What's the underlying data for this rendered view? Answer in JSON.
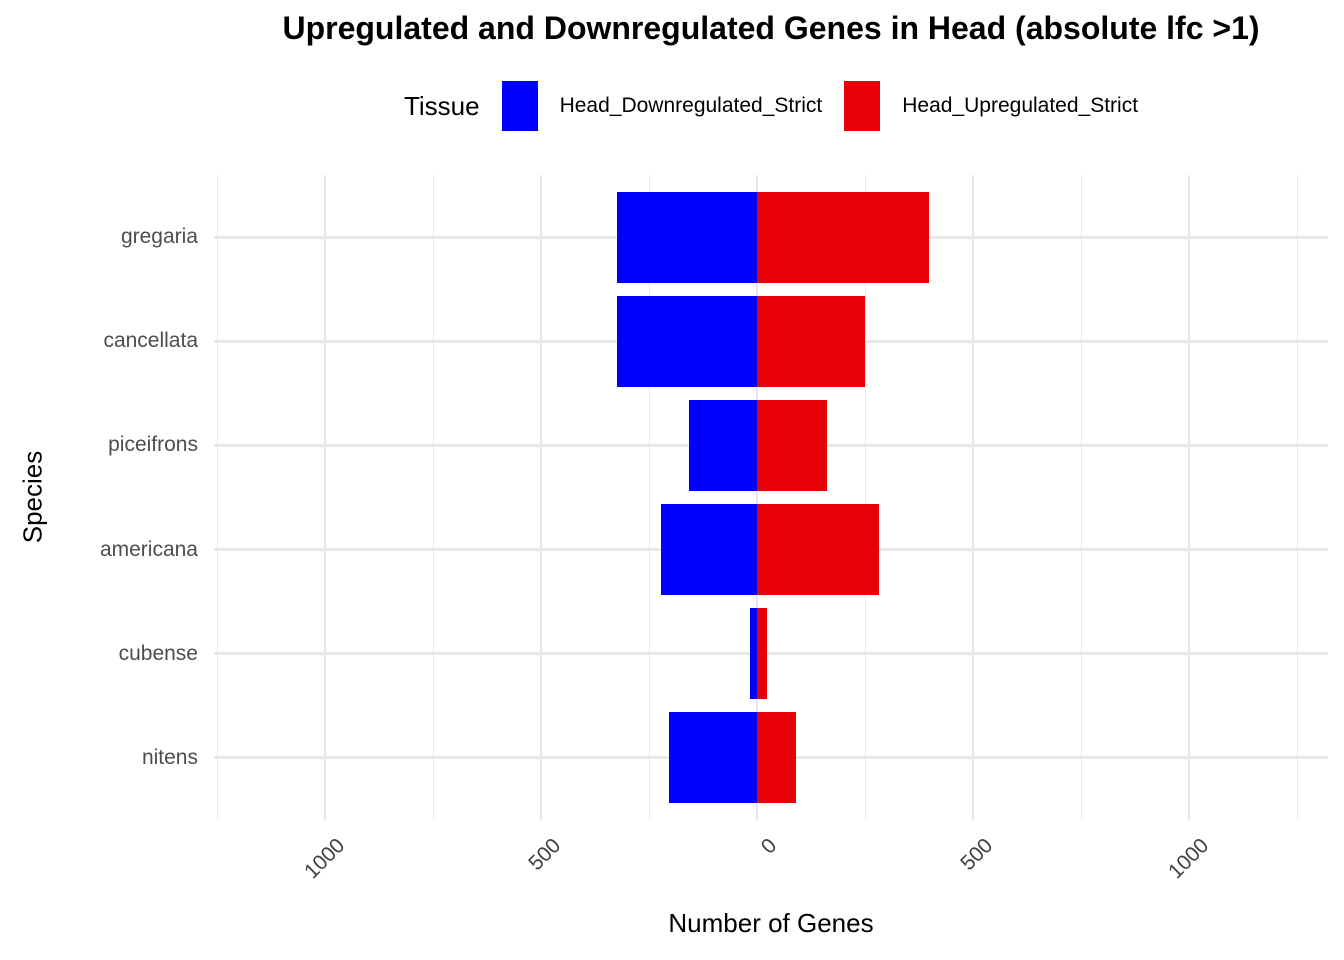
{
  "chart_data": {
    "type": "bar",
    "orientation": "horizontal-diverging",
    "title": "Upregulated and Downregulated Genes in Head (absolute lfc >1)",
    "xlabel": "Number of Genes",
    "ylabel": "Species",
    "categories": [
      "gregaria",
      "cancellata",
      "piceifrons",
      "americana",
      "cubense",
      "nitens"
    ],
    "series": [
      {
        "name": "Head_Downregulated_Strict",
        "color": "#0000FF",
        "values": [
          -326,
          -324,
          -158,
          -224,
          -17,
          -204
        ]
      },
      {
        "name": "Head_Upregulated_Strict",
        "color": "#E60008",
        "values": [
          398,
          249,
          161,
          282,
          22,
          90
        ]
      }
    ],
    "xlim": [
      -1258,
      1321
    ],
    "x_ticks": {
      "values": [
        -1000,
        -500,
        0,
        500,
        1000
      ],
      "labels": [
        "1000",
        "500",
        "0",
        "500",
        "1000"
      ]
    },
    "x_minor_gridlines": [
      -1250,
      -750,
      -250,
      250,
      750,
      1250
    ],
    "grid": true,
    "legend_position": "top",
    "bar_width_fraction": 0.875
  },
  "legend": {
    "title": "Tissue"
  },
  "colors": {
    "background": "#FFFFFF",
    "grid_major": "#E6E6E6",
    "grid_minor": "#ECECEC",
    "tick_label": "#404040",
    "axis_title": "#000000",
    "down_bar": "#0000FF",
    "up_bar": "#E60008"
  }
}
